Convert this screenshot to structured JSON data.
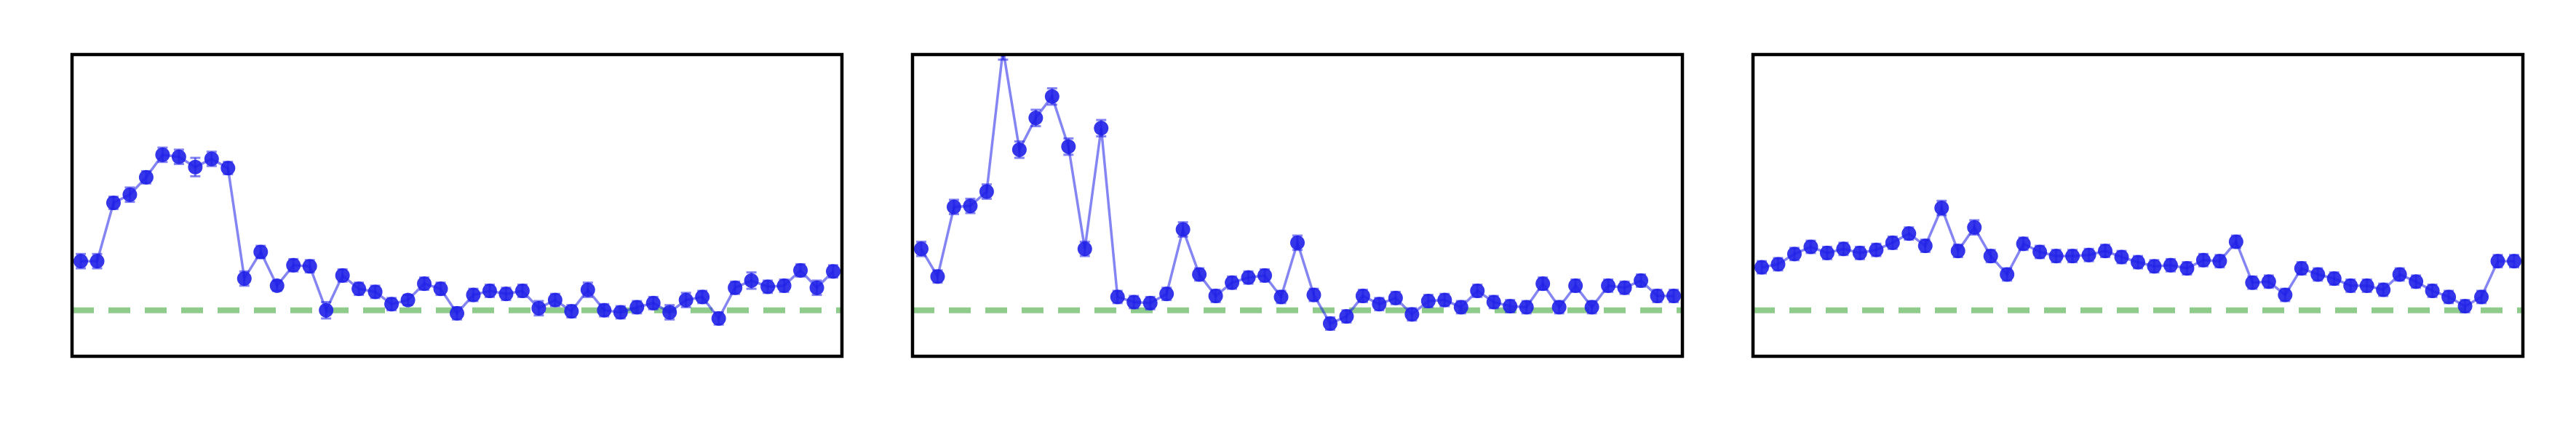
{
  "chart_data": [
    {
      "type": "line",
      "baseline": 0,
      "ylim": [
        -0.45,
        2.5
      ],
      "x": [
        0,
        1,
        2,
        3,
        4,
        5,
        6,
        7,
        8,
        9,
        10,
        11,
        12,
        13,
        14,
        15,
        16,
        17,
        18,
        19,
        20,
        21,
        22,
        23,
        24,
        25,
        26,
        27,
        28,
        29,
        30,
        31,
        32,
        33,
        34,
        35,
        36,
        37,
        38,
        39,
        40,
        41,
        42,
        43,
        44,
        45,
        46
      ],
      "values": [
        0.48,
        0.48,
        1.05,
        1.13,
        1.3,
        1.52,
        1.5,
        1.4,
        1.48,
        1.39,
        0.31,
        0.57,
        0.24,
        0.44,
        0.43,
        0.0,
        0.34,
        0.21,
        0.18,
        0.06,
        0.1,
        0.26,
        0.21,
        -0.03,
        0.15,
        0.19,
        0.16,
        0.19,
        0.02,
        0.1,
        -0.01,
        0.2,
        0.0,
        -0.02,
        0.03,
        0.07,
        -0.02,
        0.1,
        0.13,
        -0.08,
        0.22,
        0.29,
        0.23,
        0.24,
        0.39,
        0.22,
        0.38
      ],
      "errors": [
        0.07,
        0.07,
        0.06,
        0.07,
        0.06,
        0.07,
        0.07,
        0.09,
        0.07,
        0.06,
        0.07,
        0.06,
        0.05,
        0.06,
        0.06,
        0.08,
        0.06,
        0.06,
        0.06,
        0.06,
        0.05,
        0.06,
        0.06,
        0.06,
        0.06,
        0.06,
        0.06,
        0.06,
        0.07,
        0.06,
        0.06,
        0.07,
        0.06,
        0.06,
        0.06,
        0.06,
        0.07,
        0.07,
        0.06,
        0.06,
        0.06,
        0.08,
        0.06,
        0.06,
        0.06,
        0.07,
        0.06
      ],
      "color": "#1f1fe8",
      "baseline_color": "#8fcc8c"
    },
    {
      "type": "line",
      "baseline": 0,
      "ylim": [
        -0.45,
        2.5
      ],
      "x": [
        0,
        1,
        2,
        3,
        4,
        5,
        6,
        7,
        8,
        9,
        10,
        11,
        12,
        13,
        14,
        15,
        16,
        17,
        18,
        19,
        20,
        21,
        22,
        23,
        24,
        25,
        26,
        27,
        28,
        29,
        30,
        31,
        32,
        33,
        34,
        35,
        36,
        37,
        38,
        39,
        40,
        41,
        42,
        43,
        44,
        45,
        46
      ],
      "values": [
        0.6,
        0.33,
        1.01,
        1.02,
        1.16,
        2.55,
        1.57,
        1.88,
        2.09,
        1.6,
        0.6,
        1.78,
        0.13,
        0.08,
        0.07,
        0.16,
        0.79,
        0.35,
        0.14,
        0.27,
        0.32,
        0.34,
        0.13,
        0.66,
        0.15,
        -0.13,
        -0.06,
        0.14,
        0.06,
        0.12,
        -0.04,
        0.09,
        0.1,
        0.03,
        0.19,
        0.08,
        0.04,
        0.03,
        0.26,
        0.03,
        0.24,
        0.03,
        0.24,
        0.22,
        0.29,
        0.14,
        0.14
      ],
      "errors": [
        0.07,
        0.06,
        0.07,
        0.07,
        0.07,
        0.1,
        0.08,
        0.08,
        0.08,
        0.08,
        0.07,
        0.08,
        0.06,
        0.06,
        0.06,
        0.06,
        0.07,
        0.06,
        0.06,
        0.06,
        0.06,
        0.06,
        0.06,
        0.07,
        0.06,
        0.06,
        0.06,
        0.06,
        0.06,
        0.06,
        0.06,
        0.06,
        0.06,
        0.06,
        0.06,
        0.06,
        0.06,
        0.06,
        0.06,
        0.06,
        0.06,
        0.06,
        0.06,
        0.06,
        0.06,
        0.06,
        0.06
      ],
      "color": "#1f1fe8",
      "baseline_color": "#8fcc8c"
    },
    {
      "type": "line",
      "baseline": 0,
      "ylim": [
        -0.45,
        2.5
      ],
      "x": [
        0,
        1,
        2,
        3,
        4,
        5,
        6,
        7,
        8,
        9,
        10,
        11,
        12,
        13,
        14,
        15,
        16,
        17,
        18,
        19,
        20,
        21,
        22,
        23,
        24,
        25,
        26,
        27,
        28,
        29,
        30,
        31,
        32,
        33,
        34,
        35,
        36,
        37,
        38,
        39,
        40,
        41,
        42,
        43,
        44,
        45,
        46
      ],
      "values": [
        0.42,
        0.45,
        0.55,
        0.62,
        0.56,
        0.6,
        0.56,
        0.59,
        0.66,
        0.75,
        0.63,
        1.0,
        0.58,
        0.81,
        0.53,
        0.35,
        0.65,
        0.57,
        0.53,
        0.53,
        0.54,
        0.58,
        0.52,
        0.47,
        0.43,
        0.44,
        0.41,
        0.49,
        0.48,
        0.67,
        0.27,
        0.28,
        0.15,
        0.41,
        0.35,
        0.31,
        0.24,
        0.24,
        0.2,
        0.35,
        0.28,
        0.19,
        0.13,
        0.04,
        0.13,
        0.48,
        0.48
      ],
      "errors": [
        0.06,
        0.06,
        0.06,
        0.06,
        0.06,
        0.06,
        0.06,
        0.06,
        0.06,
        0.06,
        0.06,
        0.07,
        0.06,
        0.07,
        0.06,
        0.06,
        0.06,
        0.06,
        0.06,
        0.06,
        0.06,
        0.06,
        0.06,
        0.06,
        0.06,
        0.06,
        0.06,
        0.06,
        0.06,
        0.06,
        0.06,
        0.06,
        0.06,
        0.06,
        0.06,
        0.06,
        0.06,
        0.06,
        0.06,
        0.06,
        0.06,
        0.06,
        0.06,
        0.06,
        0.06,
        0.06,
        0.06
      ],
      "color": "#1f1fe8",
      "baseline_color": "#8fcc8c"
    }
  ]
}
